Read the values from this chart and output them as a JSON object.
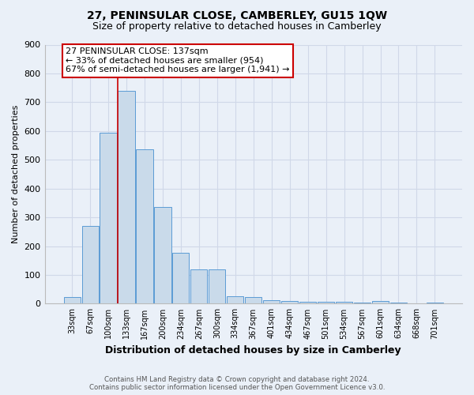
{
  "title": "27, PENINSULAR CLOSE, CAMBERLEY, GU15 1QW",
  "subtitle": "Size of property relative to detached houses in Camberley",
  "xlabel": "Distribution of detached houses by size in Camberley",
  "ylabel": "Number of detached properties",
  "bar_labels": [
    "33sqm",
    "67sqm",
    "100sqm",
    "133sqm",
    "167sqm",
    "200sqm",
    "234sqm",
    "267sqm",
    "300sqm",
    "334sqm",
    "367sqm",
    "401sqm",
    "434sqm",
    "467sqm",
    "501sqm",
    "534sqm",
    "567sqm",
    "601sqm",
    "634sqm",
    "668sqm",
    "701sqm"
  ],
  "bar_values": [
    22,
    270,
    595,
    740,
    535,
    335,
    178,
    118,
    118,
    25,
    22,
    12,
    10,
    8,
    8,
    8,
    3,
    10,
    3,
    0,
    3
  ],
  "bar_color": "#c9daea",
  "bar_edge_color": "#5b9bd5",
  "annotation_text": "27 PENINSULAR CLOSE: 137sqm\n← 33% of detached houses are smaller (954)\n67% of semi-detached houses are larger (1,941) →",
  "annotation_box_color": "#ffffff",
  "annotation_box_edge_color": "#cc0000",
  "marker_line_color": "#cc0000",
  "marker_bar_index": 3,
  "ylim": [
    0,
    900
  ],
  "yticks": [
    0,
    100,
    200,
    300,
    400,
    500,
    600,
    700,
    800,
    900
  ],
  "grid_color": "#d0d8e8",
  "bg_color": "#eaf0f8",
  "footer_line1": "Contains HM Land Registry data © Crown copyright and database right 2024.",
  "footer_line2": "Contains public sector information licensed under the Open Government Licence v3.0.",
  "title_fontsize": 10,
  "subtitle_fontsize": 9,
  "annotation_fontsize": 8,
  "xlabel_fontsize": 9,
  "ylabel_fontsize": 8
}
